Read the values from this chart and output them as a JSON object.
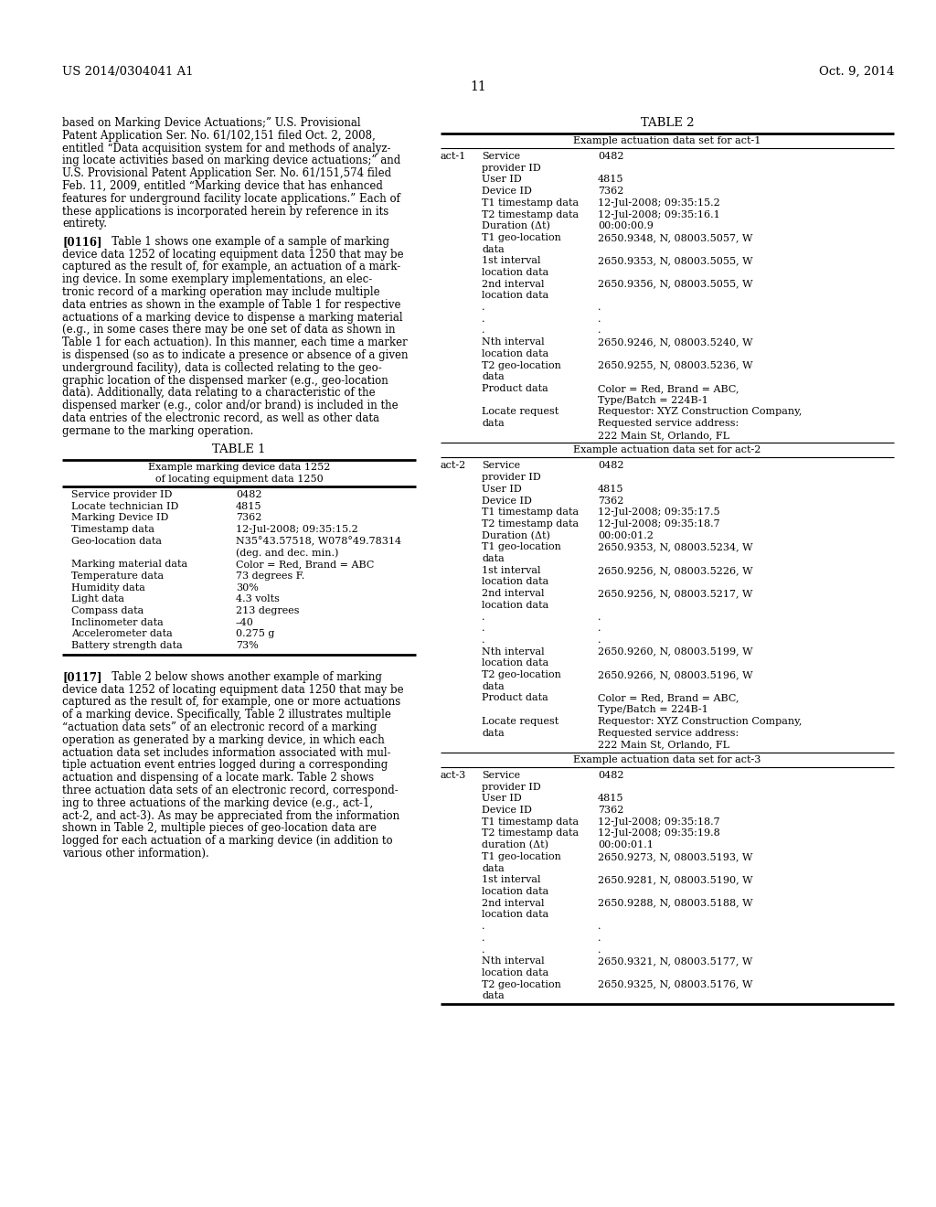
{
  "background_color": "#ffffff",
  "header_left": "US 2014/0304041 A1",
  "header_right": "Oct. 9, 2014",
  "page_number": "11",
  "left_para1": [
    "based on Marking Device Actuations;” U.S. Provisional",
    "Patent Application Ser. No. 61/102,151 filed Oct. 2, 2008,",
    "entitled “Data acquisition system for and methods of analyz-",
    "ing locate activities based on marking device actuations;” and",
    "U.S. Provisional Patent Application Ser. No. 61/151,574 filed",
    "Feb. 11, 2009, entitled “Marking device that has enhanced",
    "features for underground facility locate applications.” Each of",
    "these applications is incorporated herein by reference in its",
    "entirety."
  ],
  "para0116_label": "[0116]",
  "left_para2": [
    "   Table 1 shows one example of a sample of marking",
    "device data 1252 of locating equipment data 1250 that may be",
    "captured as the result of, for example, an actuation of a mark-",
    "ing device. In some exemplary implementations, an elec-",
    "tronic record of a marking operation may include multiple",
    "data entries as shown in the example of Table 1 for respective",
    "actuations of a marking device to dispense a marking material",
    "(e.g., in some cases there may be one set of data as shown in",
    "Table 1 for each actuation). In this manner, each time a marker",
    "is dispensed (so as to indicate a presence or absence of a given",
    "underground facility), data is collected relating to the geo-",
    "graphic location of the dispensed marker (e.g., geo-location",
    "data). Additionally, data relating to a characteristic of the",
    "dispensed marker (e.g., color and/or brand) is included in the",
    "data entries of the electronic record, as well as other data",
    "germane to the marking operation."
  ],
  "table1_title": "TABLE 1",
  "table1_subtitle1": "Example marking device data 1252",
  "table1_subtitle2": "of locating equipment data 1250",
  "table1_rows": [
    [
      "Service provider ID",
      "0482"
    ],
    [
      "Locate technician ID",
      "4815"
    ],
    [
      "Marking Device ID",
      "7362"
    ],
    [
      "Timestamp data",
      "12-Jul-2008; 09:35:15.2"
    ],
    [
      "Geo-location data",
      "N35°43.57518, W078°49.78314"
    ],
    [
      "",
      "(deg. and dec. min.)"
    ],
    [
      "Marking material data",
      "Color = Red, Brand = ABC"
    ],
    [
      "Temperature data",
      "73 degrees F."
    ],
    [
      "Humidity data",
      "30%"
    ],
    [
      "Light data",
      "4.3 volts"
    ],
    [
      "Compass data",
      "213 degrees"
    ],
    [
      "Inclinometer data",
      "–40"
    ],
    [
      "Accelerometer data",
      "0.275 g"
    ],
    [
      "Battery strength data",
      "73%"
    ]
  ],
  "para0117_label": "[0117]",
  "left_para3": [
    "   Table 2 below shows another example of marking",
    "device data 1252 of locating equipment data 1250 that may be",
    "captured as the result of, for example, one or more actuations",
    "of a marking device. Specifically, Table 2 illustrates multiple",
    "“actuation data sets” of an electronic record of a marking",
    "operation as generated by a marking device, in which each",
    "actuation data set includes information associated with mul-",
    "tiple actuation event entries logged during a corresponding",
    "actuation and dispensing of a locate mark. Table 2 shows",
    "three actuation data sets of an electronic record, correspond-",
    "ing to three actuations of the marking device (e.g., act-1,",
    "act-2, and act-3). As may be appreciated from the information",
    "shown in Table 2, multiple pieces of geo-location data are",
    "logged for each actuation of a marking device (in addition to",
    "various other information)."
  ],
  "table2_title": "TABLE 2",
  "act1_subtitle": "Example actuation data set for act-1",
  "act1_label": "act-1",
  "act1_rows": [
    [
      "Service",
      "0482"
    ],
    [
      "provider ID",
      ""
    ],
    [
      "User ID",
      "4815"
    ],
    [
      "Device ID",
      "7362"
    ],
    [
      "T1 timestamp data",
      "12-Jul-2008; 09:35:15.2"
    ],
    [
      "T2 timestamp data",
      "12-Jul-2008; 09:35:16.1"
    ],
    [
      "Duration (Δt)",
      "00:00:00.9"
    ],
    [
      "T1 geo-location",
      "2650.9348, N, 08003.5057, W"
    ],
    [
      "data",
      ""
    ],
    [
      "1st interval",
      "2650.9353, N, 08003.5055, W"
    ],
    [
      "location data",
      ""
    ],
    [
      "2nd interval",
      "2650.9356, N, 08003.5055, W"
    ],
    [
      "location data",
      ""
    ],
    [
      ".",
      "."
    ],
    [
      ".",
      "."
    ],
    [
      ".",
      "."
    ],
    [
      "Nth interval",
      "2650.9246, N, 08003.5240, W"
    ],
    [
      "location data",
      ""
    ],
    [
      "T2 geo-location",
      "2650.9255, N, 08003.5236, W"
    ],
    [
      "data",
      ""
    ],
    [
      "Product data",
      "Color = Red, Brand = ABC,"
    ],
    [
      "",
      "Type/Batch = 224B-1"
    ],
    [
      "Locate request",
      "Requestor: XYZ Construction Company,"
    ],
    [
      "data",
      "Requested service address:"
    ],
    [
      "",
      "222 Main St, Orlando, FL"
    ]
  ],
  "act2_subtitle": "Example actuation data set for act-2",
  "act2_label": "act-2",
  "act2_rows": [
    [
      "Service",
      "0482"
    ],
    [
      "provider ID",
      ""
    ],
    [
      "User ID",
      "4815"
    ],
    [
      "Device ID",
      "7362"
    ],
    [
      "T1 timestamp data",
      "12-Jul-2008; 09:35:17.5"
    ],
    [
      "T2 timestamp data",
      "12-Jul-2008; 09:35:18.7"
    ],
    [
      "Duration (Δt)",
      "00:00:01.2"
    ],
    [
      "T1 geo-location",
      "2650.9353, N, 08003.5234, W"
    ],
    [
      "data",
      ""
    ],
    [
      "1st interval",
      "2650.9256, N, 08003.5226, W"
    ],
    [
      "location data",
      ""
    ],
    [
      "2nd interval",
      "2650.9256, N, 08003.5217, W"
    ],
    [
      "location data",
      ""
    ],
    [
      ".",
      "."
    ],
    [
      ".",
      "."
    ],
    [
      ".",
      "."
    ],
    [
      "Nth interval",
      "2650.9260, N, 08003.5199, W"
    ],
    [
      "location data",
      ""
    ],
    [
      "T2 geo-location",
      "2650.9266, N, 08003.5196, W"
    ],
    [
      "data",
      ""
    ],
    [
      "Product data",
      "Color = Red, Brand = ABC,"
    ],
    [
      "",
      "Type/Batch = 224B-1"
    ],
    [
      "Locate request",
      "Requestor: XYZ Construction Company,"
    ],
    [
      "data",
      "Requested service address:"
    ],
    [
      "",
      "222 Main St, Orlando, FL"
    ]
  ],
  "act3_subtitle": "Example actuation data set for act-3",
  "act3_label": "act-3",
  "act3_rows": [
    [
      "Service",
      "0482"
    ],
    [
      "provider ID",
      ""
    ],
    [
      "User ID",
      "4815"
    ],
    [
      "Device ID",
      "7362"
    ],
    [
      "T1 timestamp data",
      "12-Jul-2008; 09:35:18.7"
    ],
    [
      "T2 timestamp data",
      "12-Jul-2008; 09:35:19.8"
    ],
    [
      "duration (Δt)",
      "00:00:01.1"
    ],
    [
      "T1 geo-location",
      "2650.9273, N, 08003.5193, W"
    ],
    [
      "data",
      ""
    ],
    [
      "1st interval",
      "2650.9281, N, 08003.5190, W"
    ],
    [
      "location data",
      ""
    ],
    [
      "2nd interval",
      "2650.9288, N, 08003.5188, W"
    ],
    [
      "location data",
      ""
    ],
    [
      ".",
      "."
    ],
    [
      ".",
      "."
    ],
    [
      ".",
      "."
    ],
    [
      "Nth interval",
      "2650.9321, N, 08003.5177, W"
    ],
    [
      "location data",
      ""
    ],
    [
      "T2 geo-location",
      "2650.9325, N, 08003.5176, W"
    ],
    [
      "data",
      ""
    ]
  ]
}
